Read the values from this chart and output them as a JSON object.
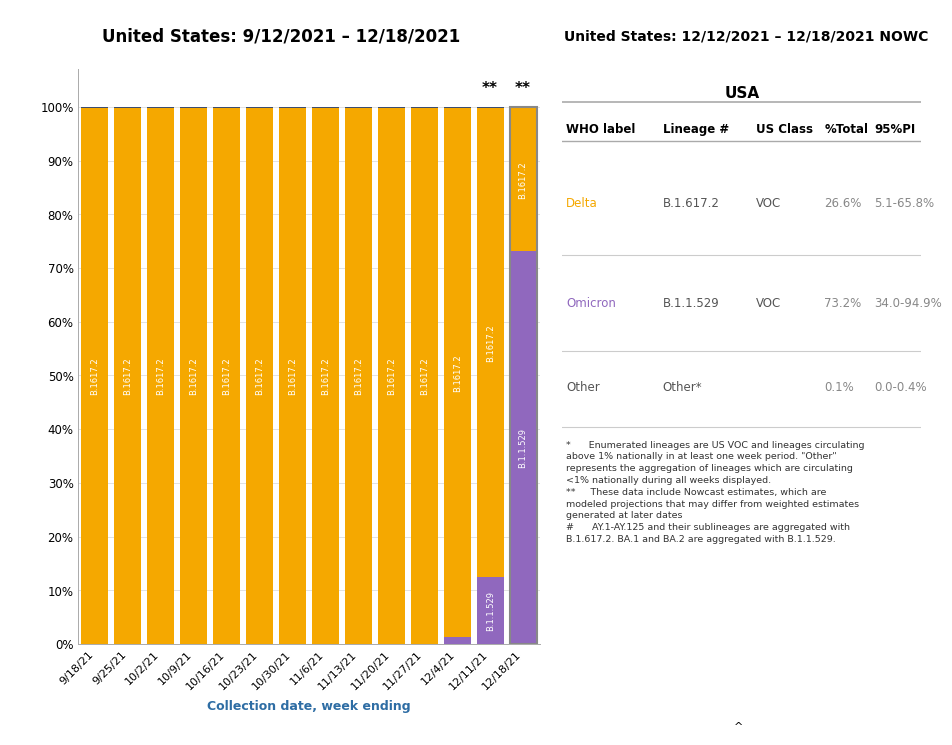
{
  "title_left": "United States: 9/12/2021 – 12/18/2021",
  "title_right": "United States: 12/12/2021 – 12/18/2021 NOWC",
  "title_bg_left": "#aed4e8",
  "title_bg_right": "#a8a8a8",
  "x_labels": [
    "9/18/21",
    "9/25/21",
    "10/2/21",
    "10/9/21",
    "10/16/21",
    "10/23/21",
    "10/30/21",
    "11/6/21",
    "11/13/21",
    "11/20/21",
    "11/27/21",
    "12/4/21",
    "12/11/21",
    "12/18/21"
  ],
  "xlabel": "Collection date, week ending",
  "color_delta": "#f5a800",
  "color_omicron": "#9068be",
  "color_other": "#3d4d6e",
  "color_other_text": "#888888",
  "bar_data_delta": [
    0.998,
    0.998,
    0.998,
    0.998,
    0.998,
    0.998,
    0.998,
    0.998,
    0.998,
    0.998,
    0.998,
    0.985,
    0.875,
    0.266
  ],
  "bar_data_omicron": [
    0.0,
    0.0,
    0.0,
    0.0,
    0.0,
    0.0,
    0.0,
    0.0,
    0.0,
    0.0,
    0.0,
    0.013,
    0.124,
    0.732
  ],
  "bar_data_other": [
    0.002,
    0.002,
    0.002,
    0.002,
    0.002,
    0.002,
    0.002,
    0.002,
    0.002,
    0.002,
    0.002,
    0.002,
    0.001,
    0.001
  ],
  "table_title": "USA",
  "table_headers": [
    "WHO label",
    "Lineage #",
    "US Class",
    "%Total",
    "95%PI"
  ],
  "table_rows": [
    [
      "Delta",
      "B.1.617.2",
      "VOC",
      "26.6%",
      "5.1-65.8%"
    ],
    [
      "Omicron",
      "B.1.1.529",
      "VOC",
      "73.2%",
      "34.0-94.9%"
    ],
    [
      "Other",
      "Other*",
      "",
      "0.1%",
      "0.0-0.4%"
    ]
  ],
  "row_colors": [
    "#f5a800",
    "#9068be",
    "#555555"
  ],
  "footnote1": "*      Enumerated lineages are US VOC and lineages circulating\nabove 1% nationally in at least one week period. \"Other\"\nrepresents the aggregation of lineages which are circulating\n<1% nationally during all weeks displayed.",
  "footnote2": "**     These data include Nowcast estimates, which are\nmodeled projections that may differ from weighted estimates\ngenerated at later dates",
  "footnote3": "#      AY.1-AY.125 and their sublineages are aggregated with\nB.1.617.2. BA.1 and BA.2 are aggregated with B.1.1.529.",
  "double_star_indices": [
    12,
    13
  ],
  "nowcast_index": 13,
  "bg_color": "#ffffff"
}
